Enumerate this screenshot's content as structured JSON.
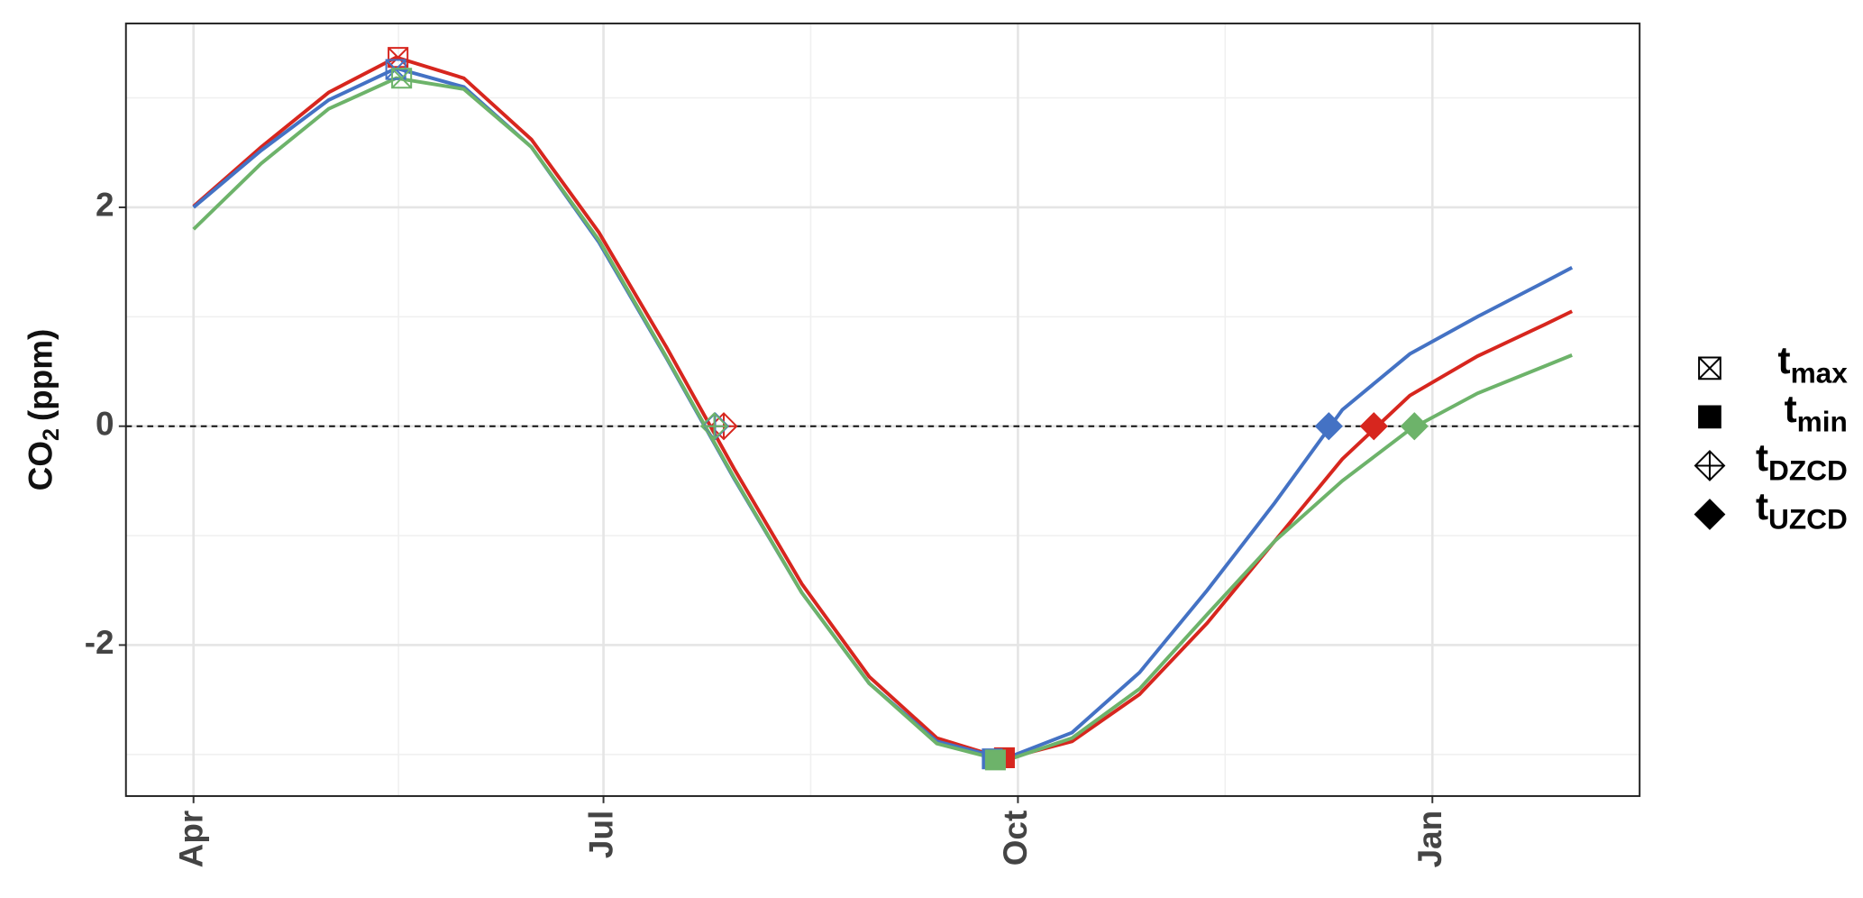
{
  "chart_data": {
    "type": "line",
    "y_label": [
      "CO",
      "2",
      "(ppm)"
    ],
    "x": [
      0,
      15,
      30,
      45,
      60,
      75,
      90,
      105,
      120,
      135,
      150,
      165,
      180,
      195,
      210,
      225,
      240,
      255,
      270,
      285,
      300,
      306
    ],
    "xlim": [
      -15,
      321
    ],
    "xticks": [
      {
        "value": 0,
        "label": "Apr"
      },
      {
        "value": 91,
        "label": "Jul"
      },
      {
        "value": 183,
        "label": "Oct"
      },
      {
        "value": 275,
        "label": "Jan"
      }
    ],
    "xminor": [
      45.5,
      137,
      229
    ],
    "ylim": [
      -3.38,
      3.68
    ],
    "yticks": [
      -2,
      0,
      2
    ],
    "yminor": [
      -3,
      -1,
      1,
      3
    ],
    "grid": true,
    "reference_line": 0,
    "legend": [
      {
        "label": "t",
        "sub": "max",
        "shape": "box-x"
      },
      {
        "label": "t",
        "sub": "min",
        "shape": "square"
      },
      {
        "label": "t",
        "sub": "DZCD",
        "shape": "diamond-plus"
      },
      {
        "label": "t",
        "sub": "UZCD",
        "shape": "diamond"
      }
    ],
    "series": [
      {
        "color": "#d7261e",
        "values": [
          2.01,
          2.55,
          3.05,
          3.37,
          3.18,
          2.62,
          1.77,
          0.72,
          -0.39,
          -1.44,
          -2.29,
          -2.85,
          -3.04,
          -2.88,
          -2.45,
          -1.8,
          -1.05,
          -0.3,
          0.28,
          0.64,
          0.93,
          1.05
        ],
        "events": [
          [
            45.4,
            3.37
          ],
          [
            180,
            -3.03
          ],
          [
            117.7,
            0
          ],
          [
            262,
            0
          ]
        ]
      },
      {
        "color": "#4472c4",
        "values": [
          2.0,
          2.52,
          2.98,
          3.27,
          3.1,
          2.55,
          1.68,
          0.62,
          -0.48,
          -1.52,
          -2.35,
          -2.88,
          -3.04,
          -2.8,
          -2.25,
          -1.5,
          -0.7,
          0.15,
          0.66,
          1.0,
          1.32,
          1.45
        ],
        "events": [
          [
            44.9,
            3.26
          ],
          [
            177.3,
            -3.04
          ],
          [
            115.8,
            0
          ],
          [
            252,
            0
          ]
        ]
      },
      {
        "color": "#6db36a",
        "values": [
          1.8,
          2.4,
          2.9,
          3.18,
          3.08,
          2.55,
          1.7,
          0.63,
          -0.47,
          -1.52,
          -2.35,
          -2.9,
          -3.06,
          -2.85,
          -2.4,
          -1.72,
          -1.05,
          -0.5,
          -0.03,
          0.3,
          0.55,
          0.65
        ],
        "events": [
          [
            46.2,
            3.18
          ],
          [
            178,
            -3.05
          ],
          [
            115.6,
            0
          ],
          [
            271,
            0
          ]
        ]
      }
    ]
  }
}
